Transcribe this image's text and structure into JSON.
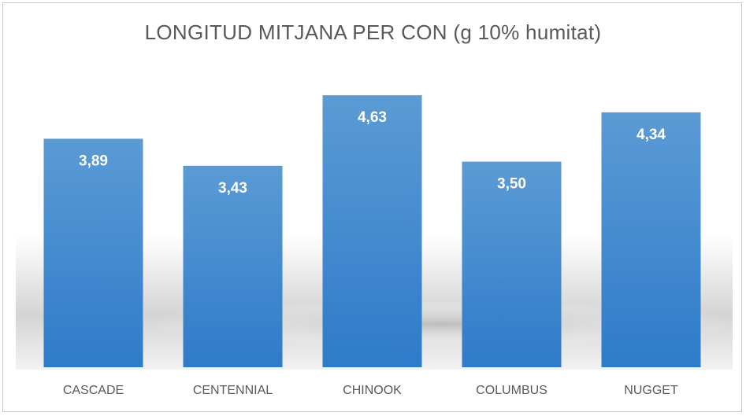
{
  "chart_data": {
    "type": "bar",
    "title": "LONGITUD MITJANA PER CON (g 10% humitat)",
    "categories": [
      "CASCADE",
      "CENTENNIAL",
      "CHINOOK",
      "COLUMBUS",
      "NUGGET"
    ],
    "values": [
      3.89,
      3.43,
      4.63,
      3.5,
      4.34
    ],
    "value_labels": [
      "3,89",
      "3,43",
      "4,63",
      "3,50",
      "4,34"
    ],
    "xlabel": "",
    "ylabel": "",
    "grid": false,
    "legend": "none",
    "colors": {
      "bar_top": "#5b9bd5",
      "bar_bottom": "#2e7bc9",
      "text": "#595959"
    }
  }
}
